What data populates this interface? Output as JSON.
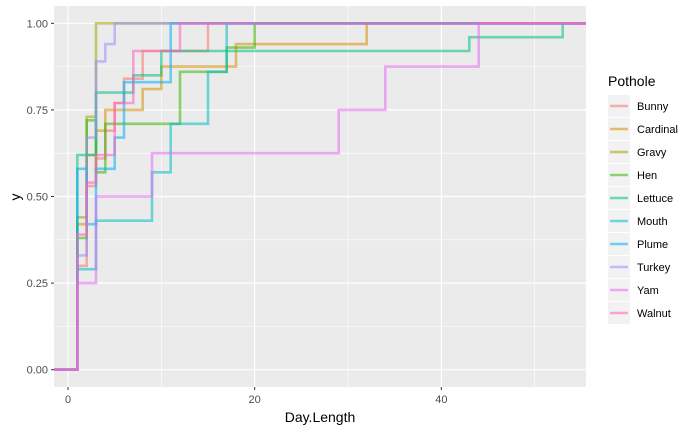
{
  "chart_data": {
    "type": "line",
    "step": true,
    "xlabel": "Day.Length",
    "ylabel": "y",
    "xlim": [
      -1.5,
      55.5
    ],
    "ylim": [
      -0.05,
      1.05
    ],
    "x_ticks": [
      0,
      20,
      40
    ],
    "y_ticks": [
      0.0,
      0.25,
      0.5,
      0.75,
      1.0
    ],
    "y_tick_labels": [
      "0.00",
      "0.25",
      "0.50",
      "0.75",
      "1.00"
    ],
    "grid": true,
    "legend": {
      "title": "Pothole",
      "position": "right"
    },
    "series": [
      {
        "name": "Bunny",
        "color": "#F8766D",
        "x": [
          -1.5,
          1,
          2,
          3,
          4,
          5,
          6,
          8,
          11,
          15,
          55.5
        ],
        "y": [
          0,
          0.3,
          0.53,
          0.61,
          0.69,
          0.77,
          0.84,
          0.92,
          0.92,
          1.0,
          1.0
        ]
      },
      {
        "name": "Cardinal",
        "color": "#D89000",
        "x": [
          -1.5,
          1,
          2,
          3,
          4,
          6,
          8,
          10,
          18,
          32,
          55.5
        ],
        "y": [
          0,
          0.42,
          0.62,
          0.69,
          0.75,
          0.75,
          0.81,
          0.875,
          0.94,
          1.0,
          1.0
        ]
      },
      {
        "name": "Gravy",
        "color": "#A3A500",
        "x": [
          -1.5,
          1,
          2,
          3,
          55.5
        ],
        "y": [
          0,
          0.44,
          0.73,
          1.0,
          1.0
        ]
      },
      {
        "name": "Hen",
        "color": "#39B600",
        "x": [
          -1.5,
          1,
          2,
          3,
          4,
          12,
          17,
          20,
          55.5
        ],
        "y": [
          0,
          0.38,
          0.72,
          0.57,
          0.71,
          0.86,
          0.93,
          1.0,
          1.0
        ]
      },
      {
        "name": "Lettuce",
        "color": "#00BF7D",
        "x": [
          -1.5,
          1,
          3,
          7,
          10,
          43,
          53,
          55.5
        ],
        "y": [
          0,
          0.62,
          0.8,
          0.85,
          0.92,
          0.96,
          1.0,
          1.0
        ]
      },
      {
        "name": "Mouth",
        "color": "#00BFC4",
        "x": [
          -1.5,
          1,
          2,
          3,
          9,
          11,
          15,
          17,
          55.5
        ],
        "y": [
          0,
          0.29,
          0.29,
          0.43,
          0.57,
          0.71,
          0.86,
          1.0,
          1.0
        ]
      },
      {
        "name": "Plume",
        "color": "#00B0F6",
        "x": [
          -1.5,
          1,
          2,
          3,
          5,
          6,
          11,
          55.5
        ],
        "y": [
          0,
          0.58,
          0.42,
          0.58,
          0.67,
          0.83,
          1.0,
          1.0
        ]
      },
      {
        "name": "Turkey",
        "color": "#9590FF",
        "x": [
          -1.5,
          1,
          2,
          3,
          4,
          5,
          55.5
        ],
        "y": [
          0,
          0.33,
          0.67,
          0.89,
          0.94,
          1.0,
          1.0
        ]
      },
      {
        "name": "Yam",
        "color": "#E76BF3",
        "x": [
          -1.5,
          1,
          3,
          9,
          29,
          34,
          44,
          55.5
        ],
        "y": [
          0,
          0.25,
          0.5,
          0.625,
          0.75,
          0.875,
          1.0,
          1.0
        ]
      },
      {
        "name": "Walnut",
        "color": "#FF62BC",
        "x": [
          -1.5,
          1,
          2,
          3,
          5,
          7,
          12,
          55.5
        ],
        "y": [
          0,
          0.39,
          0.54,
          0.62,
          0.77,
          0.92,
          1.0,
          1.0
        ]
      }
    ]
  }
}
